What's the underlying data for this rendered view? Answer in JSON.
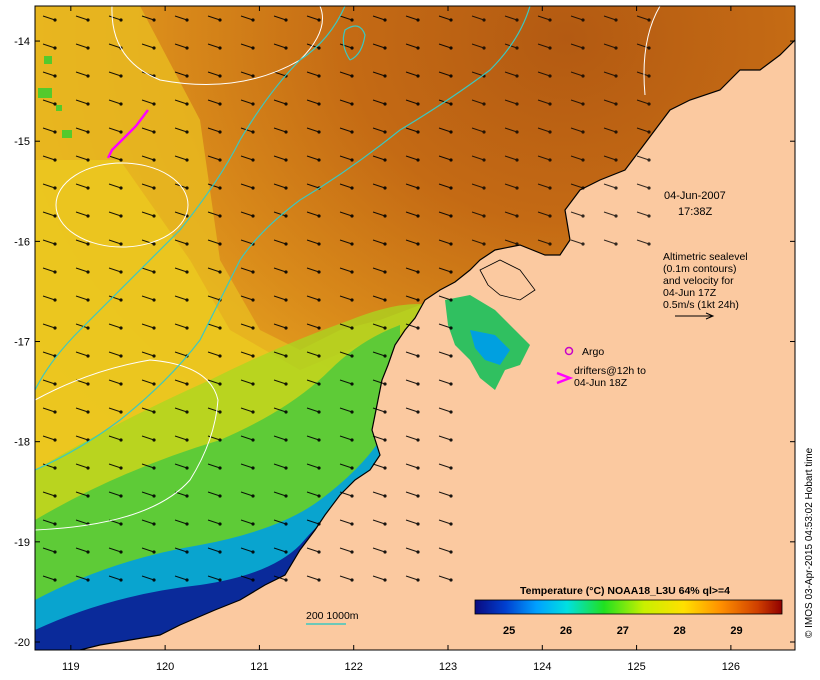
{
  "map": {
    "date_line1": "04-Jun-2007",
    "date_line2": "17:38Z",
    "altimetry_lines": [
      "Altimetric sealevel",
      "(0.1m contours)",
      "and velocity for",
      "04-Jun 17Z",
      "0.5m/s (1kt 24h)"
    ],
    "argo_label": "Argo",
    "drifters_line1": "drifters@12h to",
    "drifters_line2": "04-Jun 18Z",
    "isobath_label": "200  1000m",
    "credit": "© IMOS 03-Apr-2015 04:53:02 Hobart time"
  },
  "colorbar": {
    "title": "Temperature (°C) NOAA18_L3U 64% ql>=4",
    "ticks": [
      "25",
      "26",
      "27",
      "28",
      "29"
    ],
    "tick_values": [
      25,
      26,
      27,
      28,
      29
    ],
    "range": [
      24.4,
      29.8
    ]
  },
  "axes": {
    "lon_ticks": [
      "119",
      "120",
      "121",
      "122",
      "123",
      "124",
      "125",
      "126"
    ],
    "lon_values": [
      119,
      120,
      121,
      122,
      123,
      124,
      125,
      126
    ],
    "lat_ticks": [
      "-14",
      "-15",
      "-16",
      "-17",
      "-18",
      "-19",
      "-20"
    ],
    "lat_values": [
      -14,
      -15,
      -16,
      -17,
      -18,
      -19,
      -20
    ],
    "lon_range": [
      118.62,
      126.68
    ],
    "lat_range": [
      -20.08,
      -13.65
    ]
  },
  "colors": {
    "land": "#fbc9a0",
    "isobath": "#3cc8c0",
    "contour": "#ffffff",
    "drifter": "#ff00ff",
    "argo": "#c800c8",
    "warm": "#b85a10",
    "cool": "#0a1a8a"
  }
}
